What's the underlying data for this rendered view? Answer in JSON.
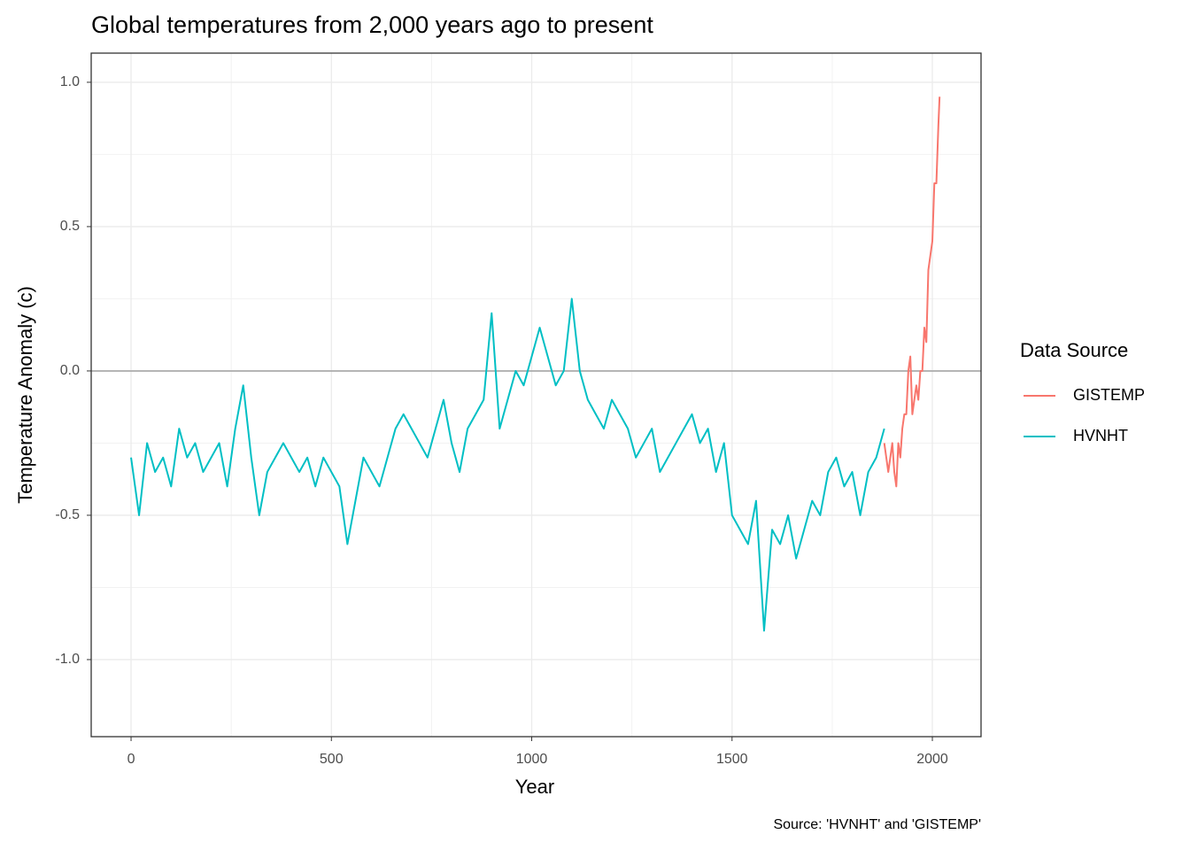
{
  "chart_data": {
    "type": "line",
    "title": "Global temperatures from 2,000 years ago to present",
    "x_label": "Year",
    "y_label": "Temperature Anomaly (c)",
    "caption": "Source: 'HVNHT' and 'GISTEMP'",
    "legend_title": "Data Source",
    "legend_position": "right",
    "grid": true,
    "hline": 0,
    "xlim": [
      -99.5,
      2121.5
    ],
    "ylim": [
      -1.267,
      1.101
    ],
    "xticks": [
      0,
      500,
      1000,
      1500,
      2000
    ],
    "yticks": [
      {
        "value": 1,
        "label": "1.0"
      },
      0.5,
      {
        "value": 0,
        "label": "0.0"
      },
      -0.5,
      {
        "value": -1,
        "label": "-1.0"
      }
    ],
    "series": [
      {
        "name": "GISTEMP",
        "color": "#f8766d",
        "x": [
          1880,
          1885,
          1890,
          1895,
          1900,
          1905,
          1910,
          1915,
          1920,
          1925,
          1930,
          1935,
          1940,
          1945,
          1950,
          1955,
          1960,
          1965,
          1970,
          1975,
          1980,
          1985,
          1990,
          1995,
          2000,
          2005,
          2010,
          2015,
          2018
        ],
        "values": [
          -0.25,
          -0.3,
          -0.35,
          -0.3,
          -0.25,
          -0.35,
          -0.4,
          -0.25,
          -0.3,
          -0.2,
          -0.15,
          -0.15,
          0.0,
          0.05,
          -0.15,
          -0.1,
          -0.05,
          -0.1,
          0.0,
          0.0,
          0.15,
          0.1,
          0.35,
          0.4,
          0.45,
          0.65,
          0.65,
          0.85,
          0.95
        ]
      },
      {
        "name": "HVNHT",
        "color": "#00bfc4",
        "x": [
          0,
          20,
          40,
          60,
          80,
          100,
          120,
          140,
          160,
          180,
          200,
          220,
          240,
          260,
          280,
          300,
          320,
          340,
          360,
          380,
          400,
          420,
          440,
          460,
          480,
          500,
          520,
          540,
          560,
          580,
          600,
          620,
          640,
          660,
          680,
          700,
          720,
          740,
          760,
          780,
          800,
          820,
          840,
          860,
          880,
          900,
          920,
          940,
          960,
          980,
          1000,
          1020,
          1040,
          1060,
          1080,
          1100,
          1120,
          1140,
          1160,
          1180,
          1200,
          1220,
          1240,
          1260,
          1280,
          1300,
          1320,
          1340,
          1360,
          1380,
          1400,
          1420,
          1440,
          1460,
          1480,
          1500,
          1520,
          1540,
          1560,
          1580,
          1600,
          1620,
          1640,
          1660,
          1680,
          1700,
          1720,
          1740,
          1760,
          1780,
          1800,
          1820,
          1840,
          1860,
          1880
        ],
        "values": [
          -0.3,
          -0.5,
          -0.25,
          -0.35,
          -0.3,
          -0.4,
          -0.2,
          -0.3,
          -0.25,
          -0.35,
          -0.3,
          -0.25,
          -0.4,
          -0.2,
          -0.05,
          -0.3,
          -0.5,
          -0.35,
          -0.3,
          -0.25,
          -0.3,
          -0.35,
          -0.3,
          -0.4,
          -0.3,
          -0.35,
          -0.4,
          -0.6,
          -0.45,
          -0.3,
          -0.35,
          -0.4,
          -0.3,
          -0.2,
          -0.15,
          -0.2,
          -0.25,
          -0.3,
          -0.2,
          -0.1,
          -0.25,
          -0.35,
          -0.2,
          -0.15,
          -0.1,
          0.2,
          -0.2,
          -0.1,
          0.0,
          -0.05,
          0.05,
          0.15,
          0.05,
          -0.05,
          0.0,
          0.25,
          0.0,
          -0.1,
          -0.15,
          -0.2,
          -0.1,
          -0.15,
          -0.2,
          -0.3,
          -0.25,
          -0.2,
          -0.35,
          -0.3,
          -0.25,
          -0.2,
          -0.15,
          -0.25,
          -0.2,
          -0.35,
          -0.25,
          -0.5,
          -0.55,
          -0.6,
          -0.45,
          -0.9,
          -0.55,
          -0.6,
          -0.5,
          -0.65,
          -0.55,
          -0.45,
          -0.5,
          -0.35,
          -0.3,
          -0.4,
          -0.35,
          -0.5,
          -0.35,
          -0.3,
          -0.2
        ]
      }
    ]
  }
}
